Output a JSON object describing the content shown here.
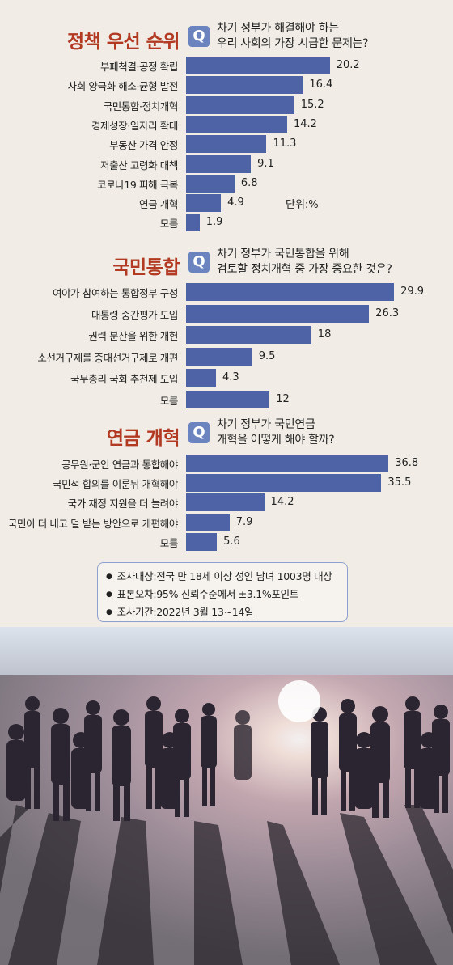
{
  "sections": [
    {
      "title": "정책 우선 순위",
      "question": [
        "차기 정부가 해결해야 하는",
        "우리 사회의 가장 시급한 문제는?"
      ],
      "unit": "단위:%"
    },
    {
      "title": "국민통합",
      "question": [
        "차기 정부가 국민통합을 위해",
        "검토할 정치개혁 중 가장 중요한 것은?"
      ]
    },
    {
      "title": "연금 개혁",
      "question": [
        "차기 정부가 국민연금",
        "개혁을 어떻게 해야 할까?"
      ]
    }
  ],
  "q_badge": "Q",
  "chart_data": [
    {
      "type": "bar",
      "title": "정책 우선 순위",
      "categories": [
        "부패척결·공정 확립",
        "사회 양극화 해소·균형 발전",
        "국민통합·정치개혁",
        "경제성장·일자리 확대",
        "부동산 가격 안정",
        "저출산 고령화 대책",
        "코로나19 피해 극복",
        "연금 개혁",
        "모름"
      ],
      "values": [
        20.2,
        16.4,
        15.2,
        14.2,
        11.3,
        9.1,
        6.8,
        4.9,
        1.9
      ],
      "value_labels": [
        "20.2",
        "16.4",
        "15.2",
        "14.2",
        "11.3",
        "9.1",
        "6.8",
        "4.9",
        "1.9"
      ]
    },
    {
      "type": "bar",
      "title": "국민통합",
      "categories": [
        "여야가 참여하는 통합정부 구성",
        "대통령 중간평가 도입",
        "권력 분산을 위한 개헌",
        "소선거구제를 중대선거구제로 개편",
        "국무총리 국회 추천제 도입",
        "모름"
      ],
      "values": [
        29.9,
        26.3,
        18,
        9.5,
        4.3,
        12
      ],
      "value_labels": [
        "29.9",
        "26.3",
        "18",
        "9.5",
        "4.3",
        "12"
      ]
    },
    {
      "type": "bar",
      "title": "연금 개혁",
      "categories": [
        "공무원·군인 연금과 통합해야",
        "국민적 합의를 이룬뒤 개혁해야",
        "국가 재정 지원을 더 늘려야",
        "국민이 더 내고 덜 받는 방안으로 개편해야",
        "모름"
      ],
      "values": [
        36.8,
        35.5,
        14.2,
        7.9,
        5.6
      ],
      "value_labels": [
        "36.8",
        "35.5",
        "14.2",
        "7.9",
        "5.6"
      ]
    }
  ],
  "notes": [
    "조사대상:전국 만 18세 이상 성인 남녀 1003명 대상",
    "표본오차:95% 신뢰수준에서 ±3.1%포인트",
    "조사기간:2022년 3월 13~14일"
  ],
  "colors": {
    "title": "#b23a22",
    "bar": "#4d63a6",
    "badge": "#6b84bf",
    "background": "#f1ede6"
  }
}
